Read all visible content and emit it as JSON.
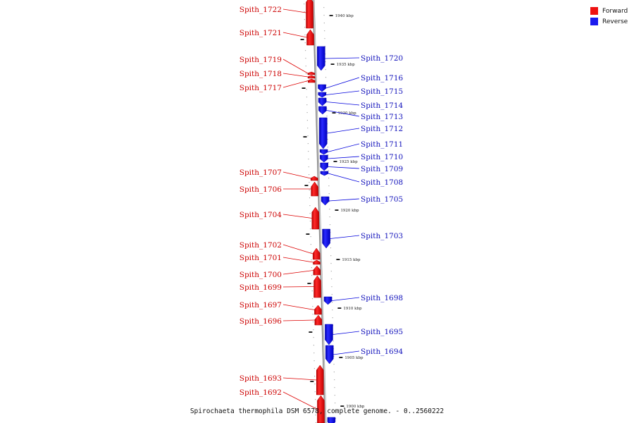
{
  "legend": {
    "forward_label": "Forward",
    "reverse_label": "Reverse",
    "forward_color": "#ee1111",
    "reverse_color": "#1a1aee"
  },
  "caption": "Spirochaeta thermophila DSM 6578, complete genome. - 0..2560222",
  "scale_ticks": [
    "1940 kbp",
    "1935 kbp",
    "1930 kbp",
    "1925 kbp",
    "1920 kbp",
    "1915 kbp",
    "1910 kbp",
    "1905 kbp",
    "1900 kbp"
  ],
  "genes_forward": [
    "Spith_1722",
    "Spith_1721",
    "Spith_1719",
    "Spith_1718",
    "Spith_1717",
    "Spith_1707",
    "Spith_1706",
    "Spith_1704",
    "Spith_1702",
    "Spith_1701",
    "Spith_1700",
    "Spith_1699",
    "Spith_1697",
    "Spith_1696",
    "Spith_1693",
    "Spith_1692"
  ],
  "genes_reverse": [
    "Spith_1720",
    "Spith_1716",
    "Spith_1715",
    "Spith_1714",
    "Spith_1713",
    "Spith_1712",
    "Spith_1711",
    "Spith_1710",
    "Spith_1709",
    "Spith_1708",
    "Spith_1705",
    "Spith_1703",
    "Spith_1698",
    "Spith_1695",
    "Spith_1694"
  ]
}
